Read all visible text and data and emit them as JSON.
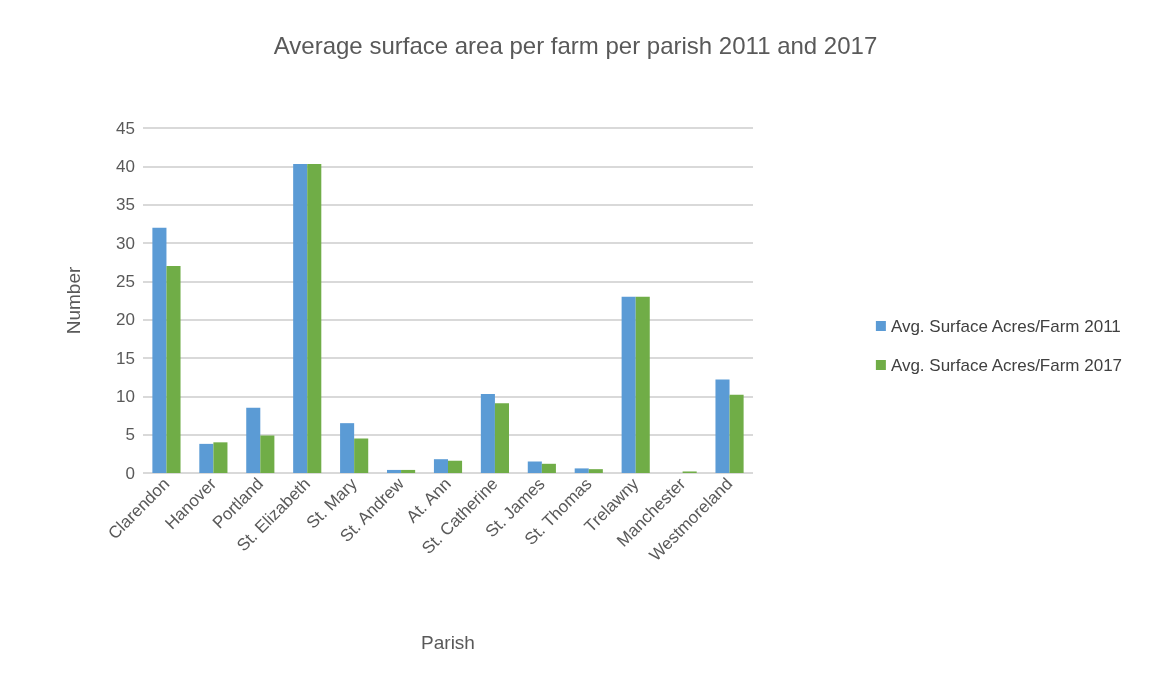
{
  "chart_data": {
    "type": "bar",
    "title": "Average surface area per farm per parish 2011 and 2017",
    "xlabel": "Parish",
    "ylabel": "Number",
    "categories": [
      "Clarendon",
      "Hanover",
      "Portland",
      "St. Elizabeth",
      "St. Mary",
      "St. Andrew",
      "At. Ann",
      "St. Catherine",
      "St. James",
      "St. Thomas",
      "Trelawny",
      "Manchester",
      "Westmoreland"
    ],
    "series": [
      {
        "name": "Avg. Surface Acres/Farm 2011",
        "color": "#5b9bd5",
        "values": [
          32,
          3.8,
          8.5,
          40.3,
          6.5,
          0.4,
          1.8,
          10.3,
          1.5,
          0.6,
          23,
          0,
          12.2
        ]
      },
      {
        "name": "Avg. Surface Acres/Farm 2017",
        "color": "#70ad47",
        "values": [
          27,
          4,
          4.9,
          40.3,
          4.5,
          0.4,
          1.6,
          9.1,
          1.2,
          0.5,
          23,
          0.2,
          10.2
        ]
      }
    ],
    "ylim": [
      0,
      45
    ],
    "yticks": [
      0,
      5,
      10,
      15,
      20,
      25,
      30,
      35,
      40,
      45
    ],
    "grid": "y",
    "legend": "right"
  }
}
